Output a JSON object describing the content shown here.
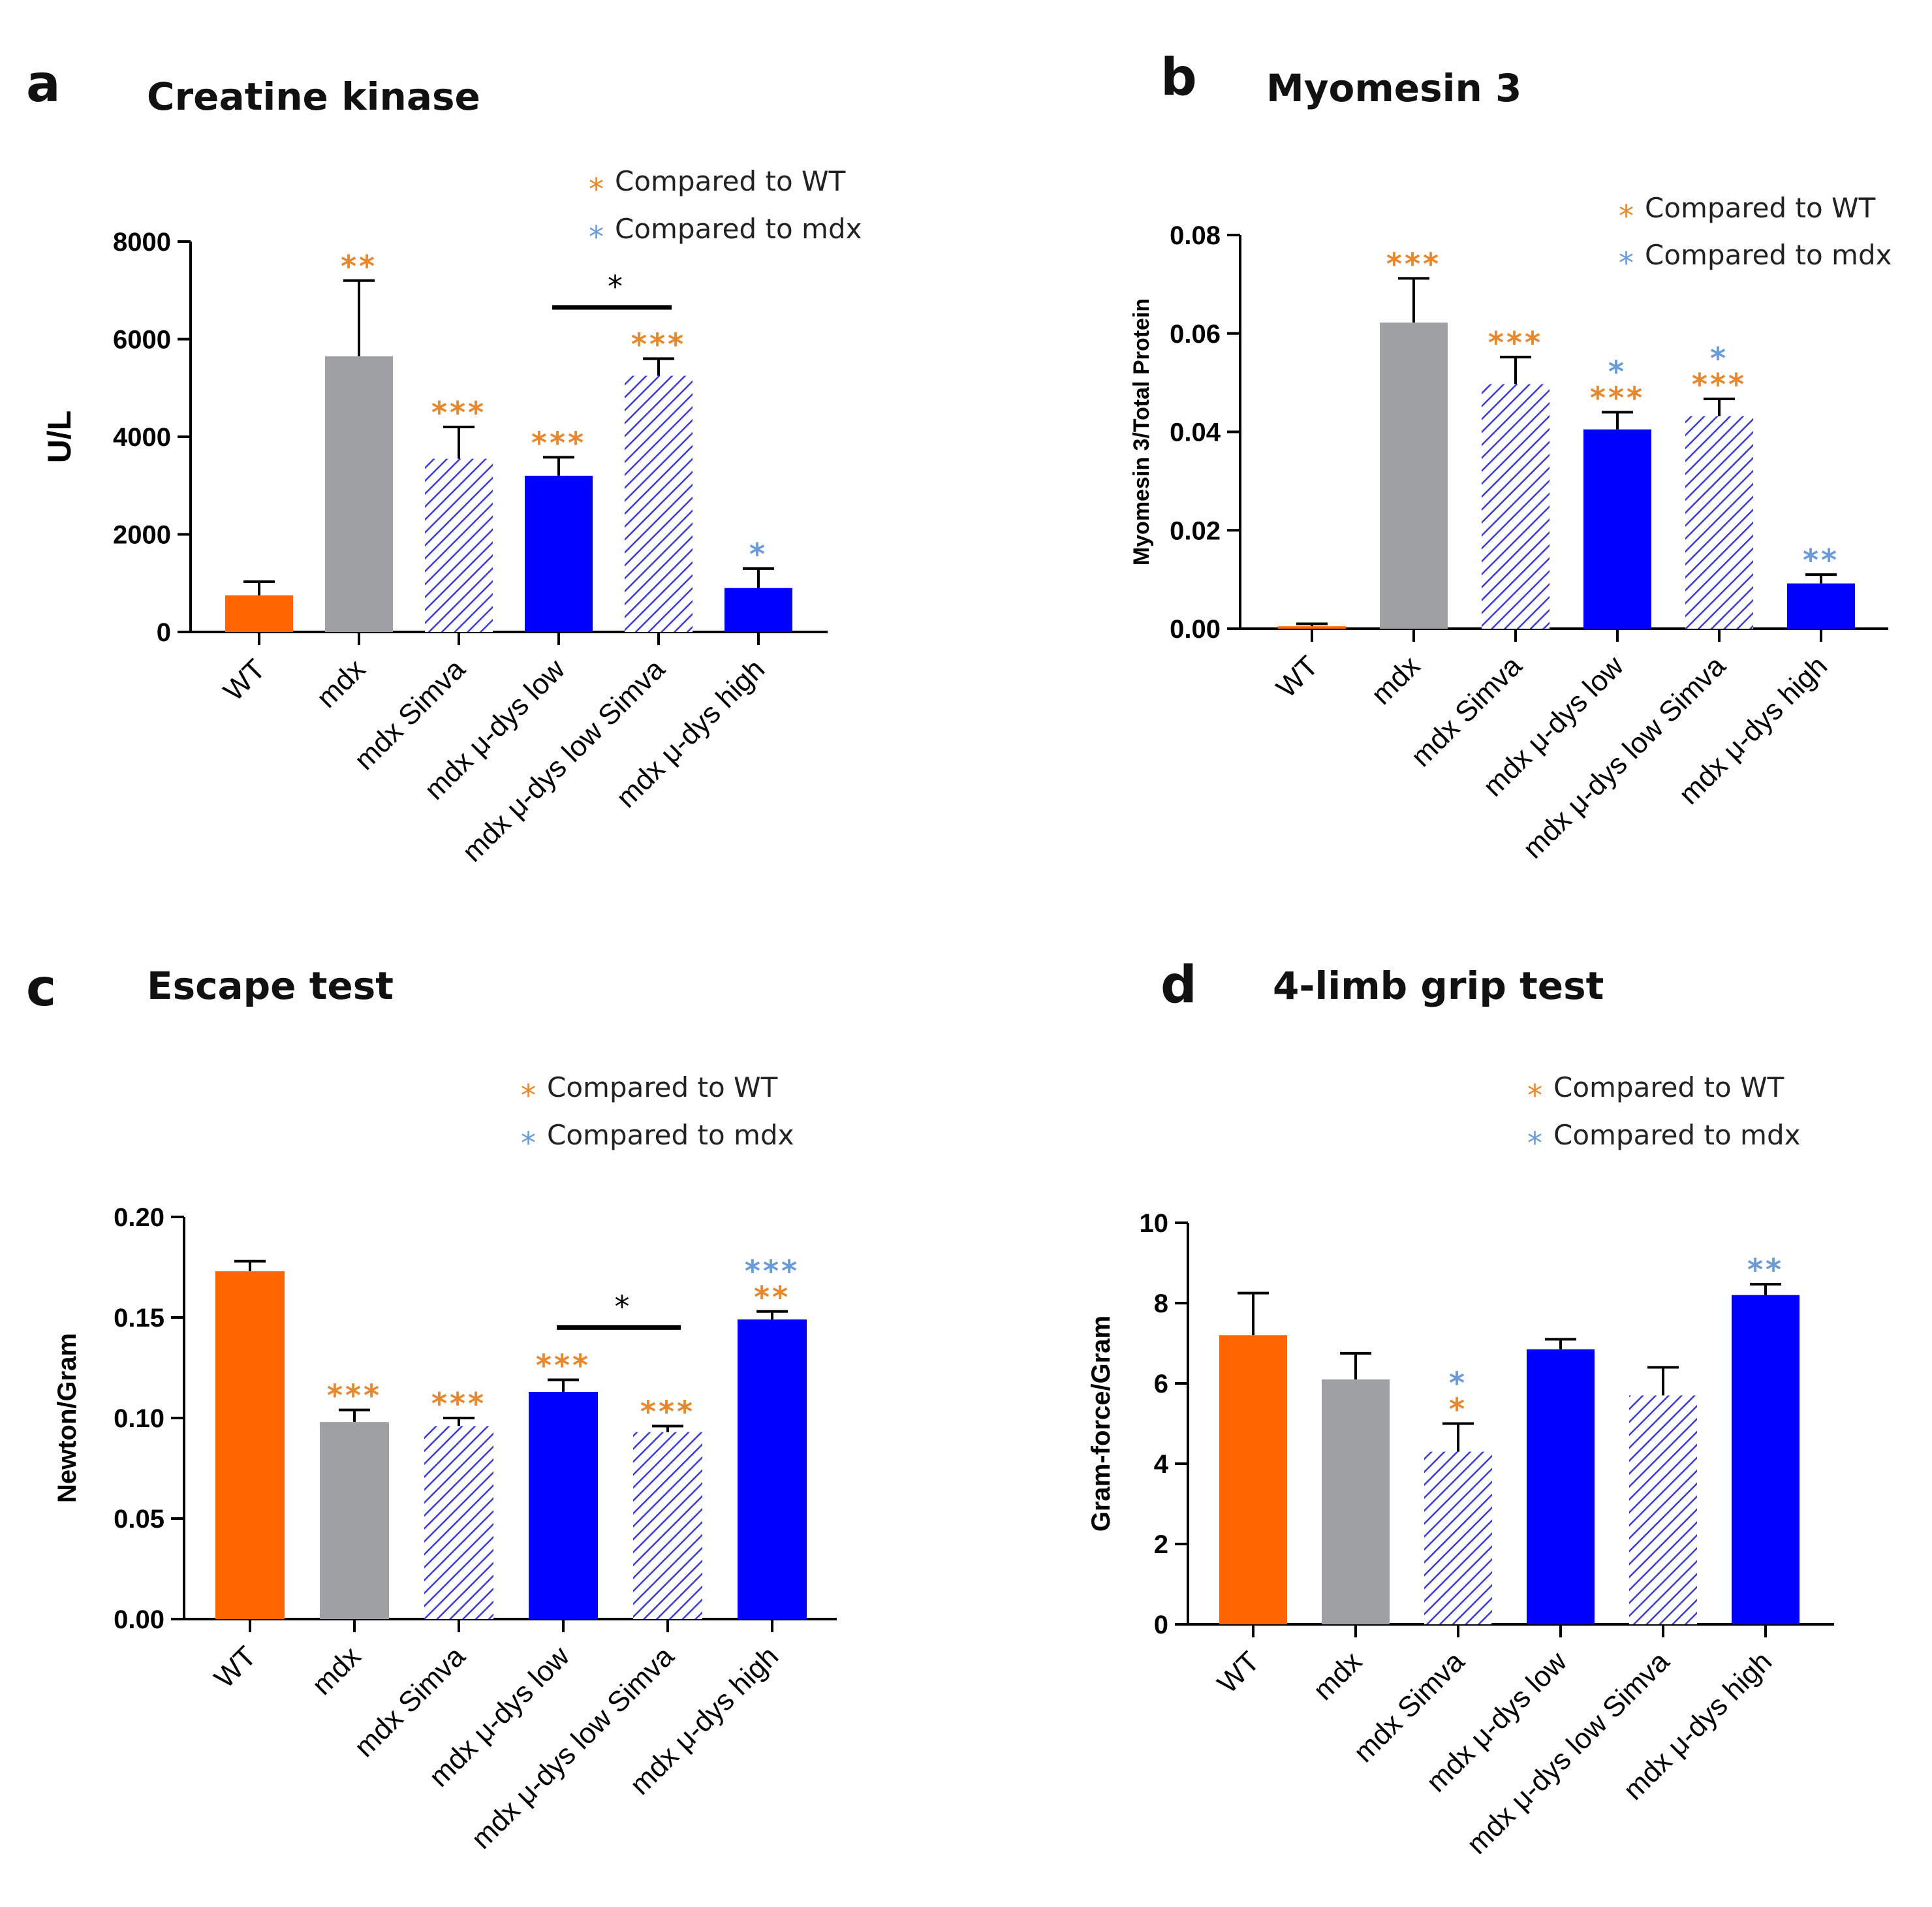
{
  "colors": {
    "wt": "#ff6600",
    "mdx": "#9fa0a4",
    "blue": "#0000ff",
    "hatch": "#3a3ad8",
    "orange_star": "#e8882e",
    "blue_star": "#6a9bd8",
    "black": "#000000"
  },
  "legend": {
    "star": "*",
    "wt": "Compared to WT",
    "mdx": "Compared to mdx"
  },
  "categories": [
    "WT",
    "mdx",
    "mdx Simva",
    "mdx μ-dys low",
    "mdx μ-dys low Simva",
    "mdx μ-dys high"
  ],
  "chart_data": [
    {
      "panel": "a",
      "type": "bar",
      "title": "Creatine kinase",
      "xlabel": "",
      "ylabel": "U/L",
      "ylim": [
        0,
        8000
      ],
      "yticks": [
        0,
        2000,
        4000,
        6000,
        8000
      ],
      "ytick_labels": [
        "0",
        "2000",
        "4000",
        "6000",
        "8000"
      ],
      "values": [
        750,
        5650,
        3550,
        3200,
        5250,
        900
      ],
      "errors": [
        280,
        1550,
        650,
        380,
        350,
        400
      ],
      "styles": [
        "wt",
        "mdx",
        "hatch",
        "blue",
        "hatch",
        "blue"
      ],
      "annotations": [
        {
          "bar": 1,
          "wt": "**",
          "mdx": ""
        },
        {
          "bar": 2,
          "wt": "***",
          "mdx": ""
        },
        {
          "bar": 3,
          "wt": "***",
          "mdx": ""
        },
        {
          "bar": 4,
          "wt": "***",
          "mdx": ""
        },
        {
          "bar": 5,
          "wt": "",
          "mdx": "*"
        }
      ],
      "bracket": {
        "from": 3,
        "to": 4,
        "value": 6650,
        "label": "*"
      }
    },
    {
      "panel": "b",
      "type": "bar",
      "title": "Myomesin 3",
      "xlabel": "",
      "ylabel": "Myomesin 3/Total Protein",
      "ylim": [
        0,
        0.08
      ],
      "yticks": [
        0,
        0.02,
        0.04,
        0.06,
        0.08
      ],
      "ytick_labels": [
        "0.00",
        "0.02",
        "0.04",
        "0.06",
        "0.08"
      ],
      "values": [
        0.0005,
        0.0622,
        0.0497,
        0.0405,
        0.0432,
        0.0092
      ],
      "errors": [
        0.0005,
        0.009,
        0.0055,
        0.0035,
        0.0035,
        0.0018
      ],
      "styles": [
        "wt",
        "mdx",
        "hatch",
        "blue",
        "hatch",
        "blue"
      ],
      "annotations": [
        {
          "bar": 1,
          "wt": "***",
          "mdx": ""
        },
        {
          "bar": 2,
          "wt": "***",
          "mdx": ""
        },
        {
          "bar": 3,
          "wt": "***",
          "mdx": "*"
        },
        {
          "bar": 4,
          "wt": "***",
          "mdx": "*"
        },
        {
          "bar": 5,
          "wt": "",
          "mdx": "**"
        }
      ],
      "bracket": null
    },
    {
      "panel": "c",
      "type": "bar",
      "title": "Escape test",
      "xlabel": "",
      "ylabel": "Newton/Gram",
      "ylim": [
        0,
        0.2
      ],
      "yticks": [
        0,
        0.05,
        0.1,
        0.15,
        0.2
      ],
      "ytick_labels": [
        "0.00",
        "0.05",
        "0.10",
        "0.15",
        "0.20"
      ],
      "values": [
        0.173,
        0.098,
        0.096,
        0.113,
        0.093,
        0.149
      ],
      "errors": [
        0.005,
        0.006,
        0.004,
        0.006,
        0.003,
        0.004
      ],
      "styles": [
        "wt",
        "mdx",
        "hatch",
        "blue",
        "hatch",
        "blue"
      ],
      "annotations": [
        {
          "bar": 1,
          "wt": "***",
          "mdx": ""
        },
        {
          "bar": 2,
          "wt": "***",
          "mdx": ""
        },
        {
          "bar": 3,
          "wt": "***",
          "mdx": ""
        },
        {
          "bar": 4,
          "wt": "***",
          "mdx": ""
        },
        {
          "bar": 5,
          "wt": "**",
          "mdx": "***"
        }
      ],
      "bracket": {
        "from": 3,
        "to": 4,
        "value": 0.145,
        "label": "*"
      }
    },
    {
      "panel": "d",
      "type": "bar",
      "title": "4-limb grip test",
      "xlabel": "",
      "ylabel": "Gram-force/Gram",
      "ylim": [
        0,
        10
      ],
      "yticks": [
        0,
        2,
        4,
        6,
        8,
        10
      ],
      "ytick_labels": [
        "0",
        "2",
        "4",
        "6",
        "8",
        "10"
      ],
      "values": [
        7.2,
        6.1,
        4.3,
        6.85,
        5.7,
        8.2
      ],
      "errors": [
        1.05,
        0.65,
        0.7,
        0.25,
        0.7,
        0.27
      ],
      "styles": [
        "wt",
        "mdx",
        "hatch",
        "blue",
        "hatch",
        "blue"
      ],
      "annotations": [
        {
          "bar": 2,
          "wt": "*",
          "mdx": "*"
        },
        {
          "bar": 5,
          "wt": "",
          "mdx": "**"
        }
      ],
      "bracket": null
    }
  ]
}
